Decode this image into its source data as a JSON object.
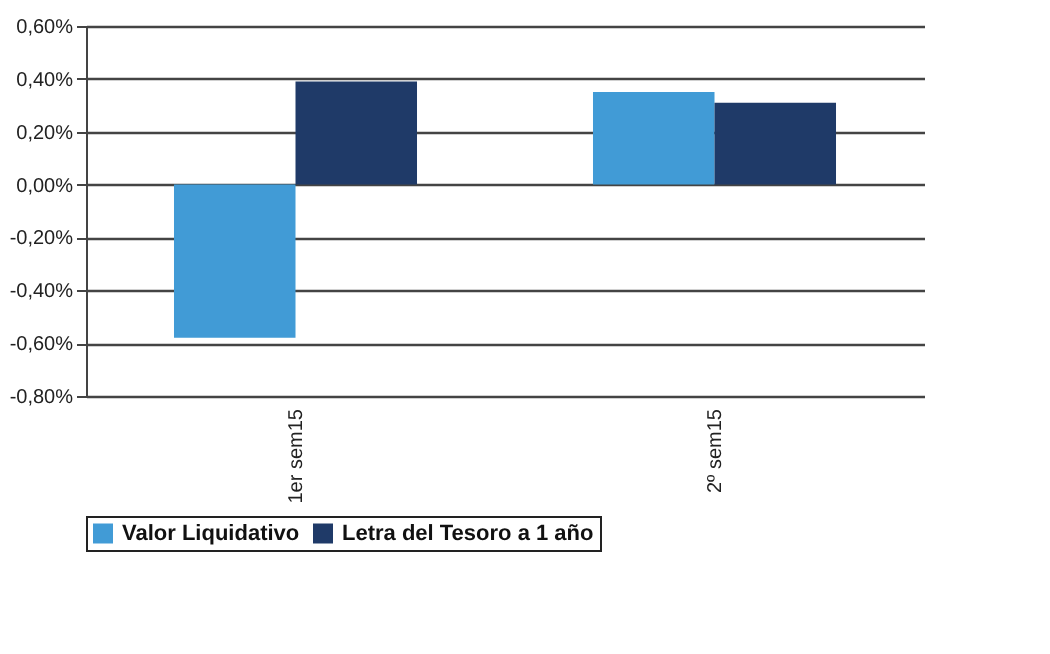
{
  "chart_data": {
    "type": "bar",
    "categories": [
      "1er sem15",
      "2º sem15"
    ],
    "series": [
      {
        "name": "Valor Liquidativo",
        "color": "#419bd6",
        "values": [
          -0.58,
          0.35
        ]
      },
      {
        "name": "Letra del Tesoro a 1 año",
        "color": "#1f3a68",
        "values": [
          0.39,
          0.31
        ]
      }
    ],
    "ylim": [
      -0.8,
      0.6
    ],
    "yticks": [
      {
        "value": -0.8,
        "label": "-0,80%"
      },
      {
        "value": -0.6,
        "label": "-0,60%"
      },
      {
        "value": -0.4,
        "label": "-0,40%"
      },
      {
        "value": -0.2,
        "label": "-0,20%"
      },
      {
        "value": 0,
        "label": "0,00%"
      },
      {
        "value": 0.2,
        "label": "0,20%"
      },
      {
        "value": 0.4,
        "label": "0,40%"
      },
      {
        "value": 0.6,
        "label": "0,60%"
      }
    ],
    "grid": "y",
    "legend": "bottom"
  }
}
